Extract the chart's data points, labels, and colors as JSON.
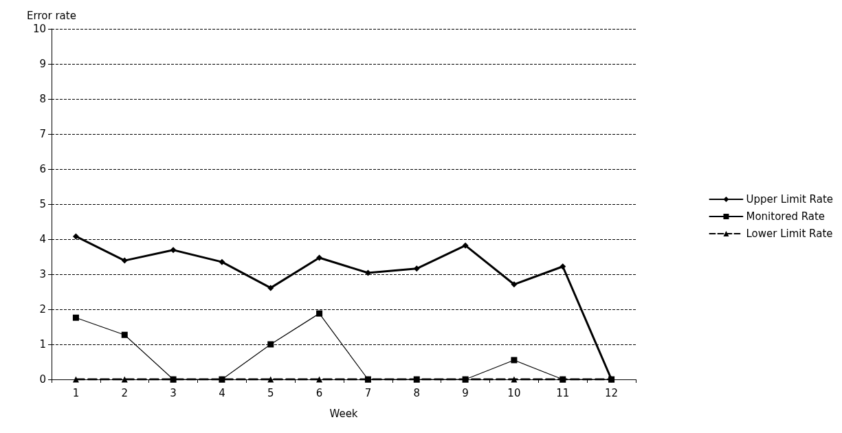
{
  "chart_data": {
    "type": "line",
    "xlabel": "Week",
    "ylabel": "Error rate",
    "categories": [
      "1",
      "2",
      "3",
      "4",
      "5",
      "6",
      "7",
      "8",
      "9",
      "10",
      "11",
      "12"
    ],
    "series": [
      {
        "name": "Upper Limit Rate",
        "color": "#000000",
        "marker": "diamond",
        "line_style": "solid",
        "values": [
          4.08,
          3.39,
          3.69,
          3.35,
          2.61,
          3.47,
          3.04,
          3.16,
          3.82,
          2.71,
          3.22,
          0
        ]
      },
      {
        "name": "Monitored Rate",
        "color": "#000000",
        "marker": "square",
        "line_style": "solid",
        "values": [
          1.76,
          1.27,
          0,
          0,
          1.0,
          1.88,
          0,
          0,
          0,
          0.55,
          0,
          0
        ]
      },
      {
        "name": "Lower Limit Rate",
        "color": "#000000",
        "marker": "triangle",
        "line_style": "dashed",
        "values": [
          0,
          0,
          0,
          0,
          0,
          0,
          0,
          0,
          0,
          0,
          0,
          0
        ]
      }
    ],
    "ylim": [
      0,
      10
    ],
    "yticks": [
      0,
      1,
      2,
      3,
      4,
      5,
      6,
      7,
      8,
      9,
      10
    ],
    "grid": "y",
    "legend": "right"
  }
}
